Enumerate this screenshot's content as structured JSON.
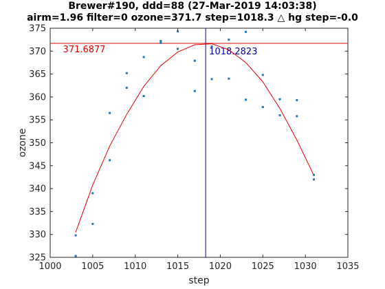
{
  "chart_data": {
    "type": "scatter",
    "title": "Brewer#190, ddd=88 (27-Mar-2019 14:03:38)",
    "subtitle": "airm=1.96  filter=0 ozone=371.7  step=1018.3 △ hg step=-0.0",
    "xlabel": "step",
    "ylabel": "ozone",
    "xlim": [
      1000,
      1035
    ],
    "ylim": [
      325,
      375
    ],
    "xticks": [
      1000,
      1005,
      1010,
      1015,
      1020,
      1025,
      1030,
      1035
    ],
    "yticks": [
      325,
      330,
      335,
      340,
      345,
      350,
      355,
      360,
      365,
      370,
      375
    ],
    "grid": false,
    "series": [
      {
        "kind": "points",
        "color": "#1f77b4",
        "x": [
          1003,
          1003,
          1005,
          1005,
          1007,
          1007,
          1009,
          1009,
          1011,
          1011,
          1013,
          1013,
          1015,
          1015,
          1017,
          1017,
          1019,
          1019,
          1021,
          1021,
          1023,
          1023,
          1025,
          1025,
          1027,
          1027,
          1029,
          1029,
          1031,
          1031
        ],
        "y": [
          325.3,
          329.8,
          332.3,
          339.0,
          346.2,
          356.5,
          362.0,
          365.2,
          360.2,
          368.7,
          371.8,
          372.2,
          370.5,
          374.3,
          361.3,
          367.9,
          363.9,
          371.0,
          364.0,
          372.5,
          359.4,
          374.2,
          357.8,
          364.8,
          356.0,
          359.5,
          355.8,
          359.3,
          342.0,
          343.0
        ]
      },
      {
        "kind": "fit-line",
        "color": "#e60000",
        "x": [
          1003,
          1005,
          1007,
          1009,
          1011,
          1013,
          1015,
          1017,
          1019,
          1021,
          1023,
          1025,
          1027,
          1029,
          1031
        ],
        "y": [
          330.5,
          340.8,
          349.3,
          356.2,
          362.3,
          366.8,
          369.8,
          371.4,
          371.6,
          370.3,
          367.5,
          363.3,
          357.5,
          350.6,
          342.9
        ]
      }
    ],
    "reference_lines": [
      {
        "orientation": "horizontal",
        "value": 371.6877,
        "label": "371.6877",
        "color": "#e60000"
      },
      {
        "orientation": "vertical",
        "value": 1018.2823,
        "label": "1018.2823",
        "color": "#0000b3"
      }
    ]
  }
}
